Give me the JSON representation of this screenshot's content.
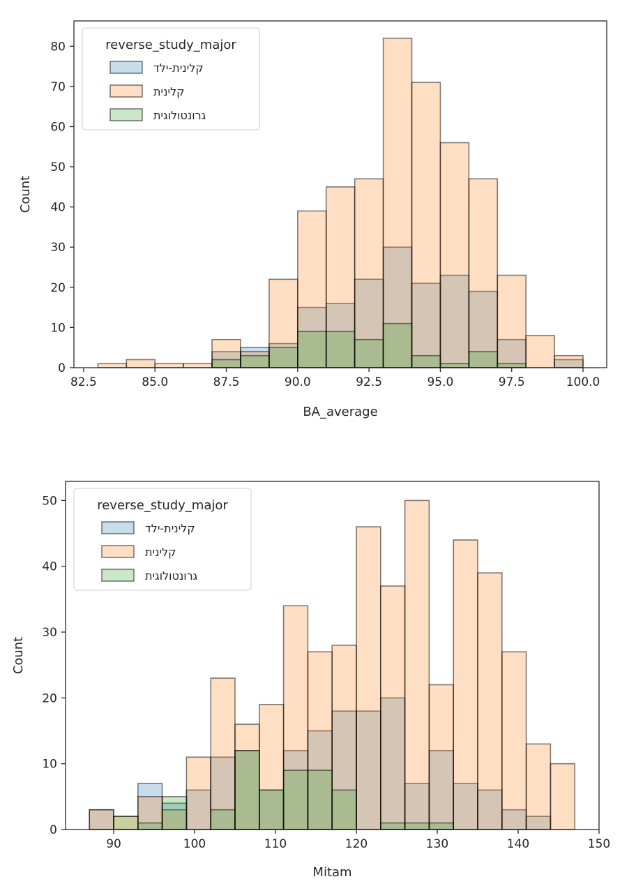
{
  "chart_data": [
    {
      "type": "bar",
      "subtype": "histogram",
      "title": "",
      "xlabel": "BA_average",
      "ylabel": "Count",
      "xlim": [
        82.16,
        100.83
      ],
      "ylim": [
        0,
        86.3
      ],
      "xticks": [
        82.5,
        85.0,
        87.5,
        90.0,
        92.5,
        95.0,
        97.5,
        100.0
      ],
      "xtick_labels": [
        "82.5",
        "85.0",
        "87.5",
        "90.0",
        "92.5",
        "95.0",
        "97.5",
        "100.0"
      ],
      "yticks": [
        0,
        10,
        20,
        30,
        40,
        50,
        60,
        70,
        80
      ],
      "ytick_labels": [
        "0",
        "10",
        "20",
        "30",
        "40",
        "50",
        "60",
        "70",
        "80"
      ],
      "grid": false,
      "legend": {
        "title": "reverse_study_major",
        "position": "top-left"
      },
      "bin_edges": [
        83,
        84,
        85,
        86,
        87,
        88,
        89,
        90,
        91,
        92,
        93,
        94,
        95,
        96,
        97,
        98,
        99,
        100
      ],
      "series": [
        {
          "name": "קלינית-ילד",
          "color": "#1f77b4",
          "values": [
            0,
            0,
            0,
            0,
            4,
            5,
            6,
            15,
            16,
            22,
            30,
            21,
            23,
            19,
            7,
            0,
            2
          ]
        },
        {
          "name": "קלינית",
          "color": "#ff7f0e",
          "values": [
            1,
            2,
            1,
            1,
            7,
            4,
            22,
            39,
            45,
            47,
            82,
            71,
            56,
            47,
            23,
            8,
            3
          ]
        },
        {
          "name": "גרונטולוגית",
          "color": "#2ca02c",
          "values": [
            0,
            0,
            0,
            0,
            2,
            3,
            5,
            9,
            9,
            7,
            11,
            3,
            1,
            4,
            1,
            0,
            0
          ]
        }
      ]
    },
    {
      "type": "bar",
      "subtype": "histogram",
      "title": "",
      "xlabel": "Mitam",
      "ylabel": "Count",
      "xlim": [
        84.05,
        150
      ],
      "ylim": [
        0,
        52.9
      ],
      "xticks": [
        90,
        100,
        110,
        120,
        130,
        140,
        150
      ],
      "xtick_labels": [
        "90",
        "100",
        "110",
        "120",
        "130",
        "140",
        "150"
      ],
      "yticks": [
        0,
        10,
        20,
        30,
        40,
        50
      ],
      "ytick_labels": [
        "0",
        "10",
        "20",
        "30",
        "40",
        "50"
      ],
      "grid": false,
      "legend": {
        "title": "reverse_study_major",
        "position": "top-left"
      },
      "bin_edges": [
        87,
        90,
        93,
        96,
        99,
        102,
        105,
        108,
        111,
        114,
        117,
        120,
        123,
        126,
        129,
        132,
        135,
        138,
        141,
        144,
        147
      ],
      "series": [
        {
          "name": "קלינית-ילד",
          "color": "#1f77b4",
          "values": [
            3,
            0,
            7,
            4,
            6,
            11,
            12,
            6,
            12,
            15,
            18,
            18,
            20,
            7,
            12,
            7,
            6,
            3,
            2,
            0
          ]
        },
        {
          "name": "קלינית",
          "color": "#ff7f0e",
          "values": [
            3,
            2,
            5,
            3,
            11,
            23,
            16,
            19,
            34,
            27,
            28,
            46,
            37,
            50,
            22,
            44,
            39,
            27,
            13,
            10
          ]
        },
        {
          "name": "גרונטולוגית",
          "color": "#2ca02c",
          "values": [
            0,
            2,
            1,
            5,
            0,
            3,
            12,
            6,
            9,
            9,
            6,
            0,
            1,
            1,
            1,
            0,
            0,
            0,
            0,
            0
          ]
        }
      ]
    }
  ]
}
